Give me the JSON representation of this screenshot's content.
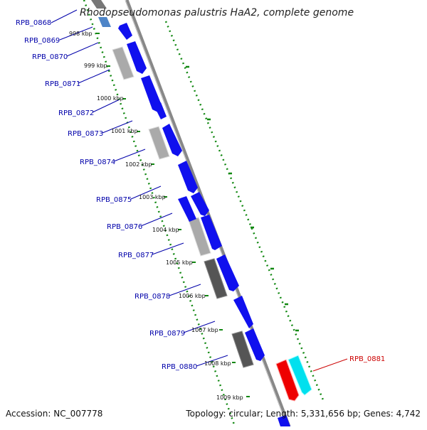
{
  "title": "Rhodopseudomonas palustris HaA2, complete genome",
  "footer": {
    "accession": "Accession: NC_007778",
    "summary": "Topology: circular; Length: 5,331,656 bp; Genes: 4,742"
  },
  "colors": {
    "label_blue": "#0000aa",
    "label_red": "#cc0000",
    "gene_blue": "#1010ee",
    "gene_gray": "#aaaaaa",
    "gene_dark": "#555555",
    "gene_red": "#ee0000",
    "gene_cyan": "#00e0ee",
    "backbone": "#888888",
    "dots": "#118811"
  },
  "genes": [
    {
      "label": "RPB_0868"
    },
    {
      "label": "RPB_0869"
    },
    {
      "label": "RPB_0870"
    },
    {
      "label": "RPB_0871"
    },
    {
      "label": "RPB_0872"
    },
    {
      "label": "RPB_0873"
    },
    {
      "label": "RPB_0874"
    },
    {
      "label": "RPB_0875"
    },
    {
      "label": "RPB_0876"
    },
    {
      "label": "RPB_0877"
    },
    {
      "label": "RPB_0878"
    },
    {
      "label": "RPB_0879"
    },
    {
      "label": "RPB_0880"
    },
    {
      "label": "RPB_0881"
    }
  ],
  "kbp_ticks": [
    "998 kbp",
    "999 kbp",
    "1000 kbp",
    "1001 kbp",
    "1002 kbp",
    "1003 kbp",
    "1004 kbp",
    "1005 kbp",
    "1006 kbp",
    "1007 kbp",
    "1008 kbp",
    "1009 kbp"
  ]
}
